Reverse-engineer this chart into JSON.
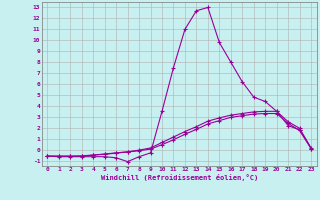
{
  "xlabel": "Windchill (Refroidissement éolien,°C)",
  "background_color": "#c8f0f0",
  "grid_color": "#b0b0b0",
  "line_color": "#990099",
  "spine_color": "#777777",
  "xlim": [
    -0.5,
    23.5
  ],
  "ylim": [
    -1.5,
    13.5
  ],
  "xticks": [
    0,
    1,
    2,
    3,
    4,
    5,
    6,
    7,
    8,
    9,
    10,
    11,
    12,
    13,
    14,
    15,
    16,
    17,
    18,
    19,
    20,
    21,
    22,
    23
  ],
  "yticks": [
    -1,
    0,
    1,
    2,
    3,
    4,
    5,
    6,
    7,
    8,
    9,
    10,
    11,
    12,
    13
  ],
  "line1_x": [
    0,
    1,
    2,
    3,
    4,
    5,
    6,
    7,
    8,
    9,
    10,
    11,
    12,
    13,
    14,
    15,
    16,
    17,
    18,
    19,
    20,
    21,
    22,
    23
  ],
  "line1_y": [
    -0.6,
    -0.65,
    -0.65,
    -0.65,
    -0.65,
    -0.65,
    -0.75,
    -1.1,
    -0.65,
    -0.3,
    3.5,
    7.5,
    11.0,
    12.7,
    13.0,
    9.8,
    8.0,
    6.2,
    4.8,
    4.4,
    3.5,
    2.2,
    1.8,
    0.1
  ],
  "line2_x": [
    0,
    1,
    2,
    3,
    4,
    5,
    6,
    7,
    8,
    9,
    10,
    11,
    12,
    13,
    14,
    15,
    16,
    17,
    18,
    19,
    20,
    21,
    22,
    23
  ],
  "line2_y": [
    -0.6,
    -0.6,
    -0.6,
    -0.6,
    -0.5,
    -0.4,
    -0.3,
    -0.2,
    -0.05,
    0.15,
    0.65,
    1.15,
    1.65,
    2.1,
    2.6,
    2.9,
    3.15,
    3.3,
    3.45,
    3.5,
    3.5,
    2.55,
    1.95,
    0.15
  ],
  "line3_x": [
    0,
    1,
    2,
    3,
    4,
    5,
    6,
    7,
    8,
    9,
    10,
    11,
    12,
    13,
    14,
    15,
    16,
    17,
    18,
    19,
    20,
    21,
    22,
    23
  ],
  "line3_y": [
    -0.6,
    -0.6,
    -0.6,
    -0.57,
    -0.5,
    -0.43,
    -0.32,
    -0.22,
    -0.1,
    0.05,
    0.45,
    0.9,
    1.4,
    1.85,
    2.35,
    2.65,
    2.95,
    3.1,
    3.25,
    3.3,
    3.3,
    2.4,
    1.75,
    0.1
  ]
}
